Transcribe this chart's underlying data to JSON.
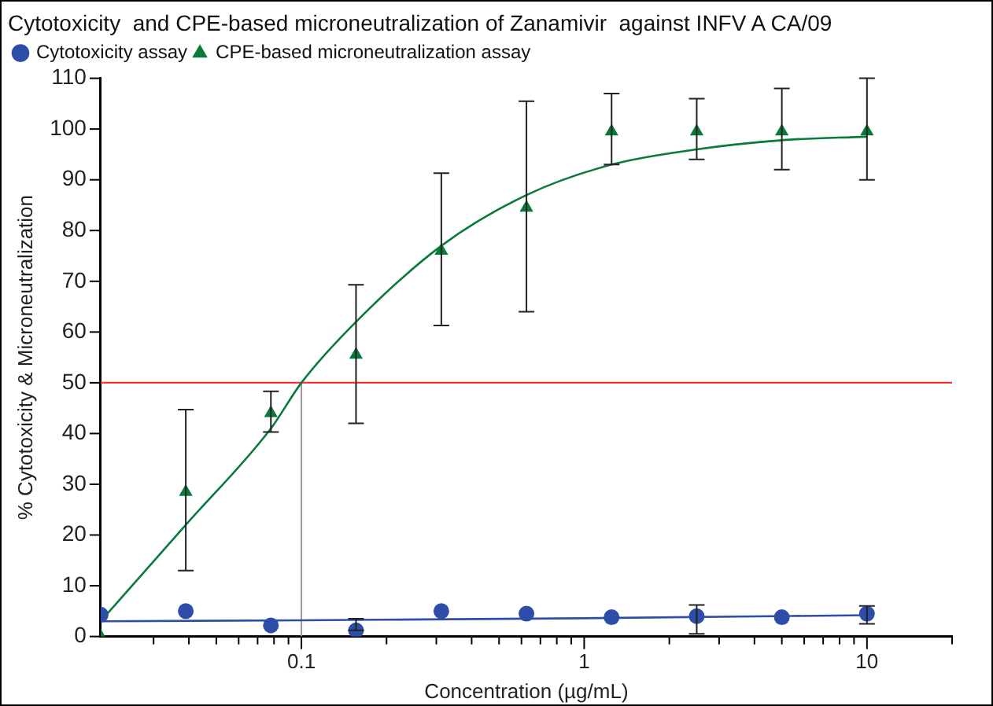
{
  "chart_data": {
    "type": "scatter",
    "title": "Cytotoxicity  and CPE-based microneutralization of Zanamivir  against INFV A CA/09",
    "xlabel": "Concentration (µg/mL)",
    "ylabel": "% Cytotoxicity & Microneutralization",
    "log": "x",
    "grid": false,
    "legend": "top left",
    "xlim": [
      0.0195,
      20
    ],
    "xticks": [
      {
        "value": 0.03,
        "label": null
      },
      {
        "value": 0.04,
        "label": null
      },
      {
        "value": 0.05,
        "label": null
      },
      {
        "value": 0.06,
        "label": null
      },
      {
        "value": 0.07,
        "label": null
      },
      {
        "value": 0.08,
        "label": null
      },
      {
        "value": 0.09,
        "label": null
      },
      {
        "value": 0.1,
        "label": "0.1"
      },
      {
        "value": 0.2,
        "label": null
      },
      {
        "value": 0.3,
        "label": null
      },
      {
        "value": 0.4,
        "label": null
      },
      {
        "value": 0.5,
        "label": null
      },
      {
        "value": 0.6,
        "label": null
      },
      {
        "value": 0.7,
        "label": null
      },
      {
        "value": 0.8,
        "label": null
      },
      {
        "value": 0.9,
        "label": null
      },
      1,
      {
        "value": 2,
        "label": null
      },
      {
        "value": 3,
        "label": null
      },
      {
        "value": 4,
        "label": null
      },
      {
        "value": 5,
        "label": null
      },
      {
        "value": 6,
        "label": null
      },
      {
        "value": 7,
        "label": null
      },
      {
        "value": 8,
        "label": null
      },
      {
        "value": 9,
        "label": null
      },
      10,
      {
        "value": 20,
        "label": null
      }
    ],
    "ylim": [
      0,
      110
    ],
    "yticks": [
      0,
      10,
      20,
      30,
      40,
      50,
      60,
      70,
      80,
      90,
      100,
      110
    ],
    "x": [
      0.0195,
      0.039,
      0.078,
      0.156,
      0.3125,
      0.625,
      1.25,
      2.5,
      5,
      10
    ],
    "series": [
      {
        "name": "Cytotoxicity assay",
        "color": "#2e4da8",
        "marker": "circle",
        "values": [
          4.3,
          5,
          2.2,
          1.2,
          5,
          4.5,
          3.8,
          4,
          3.8,
          4.5
        ],
        "errors": [
          null,
          null,
          null,
          [
            1.2,
            3.5
          ],
          null,
          null,
          null,
          [
            0.5,
            6.2
          ],
          null,
          [
            2.5,
            6
          ]
        ]
      },
      {
        "name": "CPE-based microneutralization assay",
        "color": "#0a7a3a",
        "marker": "triangle",
        "values": [
          0,
          28.5,
          44,
          55.5,
          76,
          84.5,
          99.5,
          99.5,
          99.5,
          99.5
        ],
        "errors": [
          null,
          [
            13,
            44.7
          ],
          [
            40.3,
            48.3
          ],
          [
            42,
            69.3
          ],
          [
            61.3,
            91.3
          ],
          [
            64,
            105.5
          ],
          [
            93,
            107
          ],
          [
            94,
            106
          ],
          [
            92,
            108
          ],
          [
            90,
            110
          ]
        ]
      },
      {
        "type": "line",
        "color": "#2e4da8",
        "marker": "none",
        "x": [
          0.0195,
          0.1,
          1,
          10
        ],
        "values": [
          3,
          3.2,
          3.6,
          4.2
        ]
      },
      {
        "type": "line",
        "color": "#0a7a3a",
        "marker": "none",
        "x": [
          0.0195,
          0.039,
          0.078,
          0.1,
          0.156,
          0.3125,
          0.625,
          1.25,
          2.5,
          5,
          10
        ],
        "values": [
          3,
          22,
          41,
          50,
          62,
          77,
          87,
          93,
          96,
          97.8,
          98.5
        ]
      }
    ],
    "ref_lines": [
      {
        "axis": "y",
        "value": 50,
        "label": null,
        "color": "#ff2020"
      },
      {
        "axis": "x",
        "value": 0.1,
        "label": null,
        "color": "#999999"
      }
    ]
  }
}
